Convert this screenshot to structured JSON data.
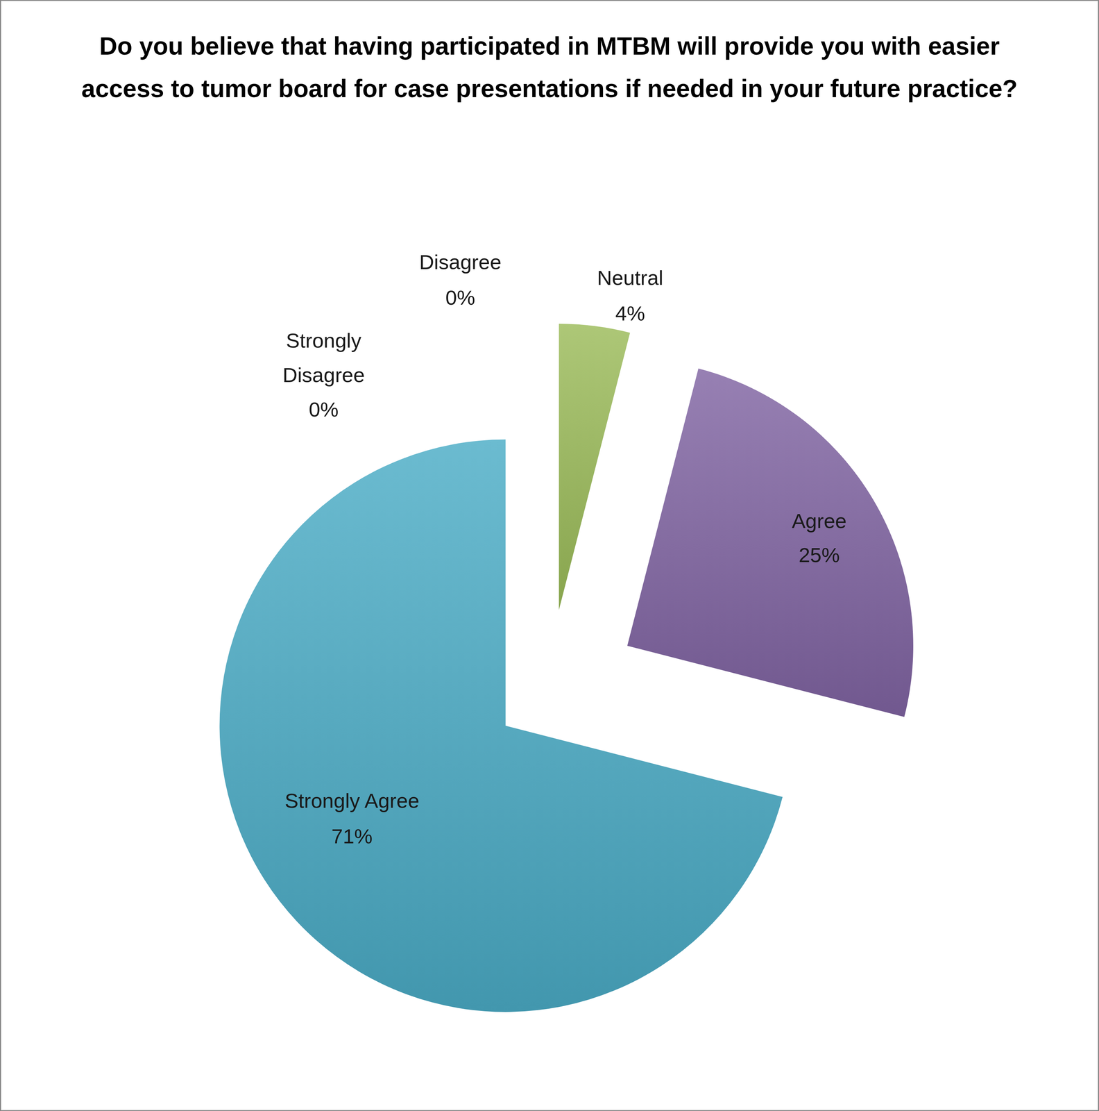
{
  "chart_data": {
    "type": "pie",
    "title": "Do you believe that having participated in MTBM will provide you with easier access to tumor board for case presentations if needed in your future practice?",
    "categories": [
      "Strongly Disagree",
      "Disagree",
      "Neutral",
      "Agree",
      "Strongly Agree"
    ],
    "values": [
      0,
      0,
      4,
      25,
      71
    ],
    "value_labels": [
      "0%",
      "0%",
      "4%",
      "25%",
      "71%"
    ],
    "colors": [
      "#4f81bd",
      "#c0504d",
      "#9bbb59",
      "#8064a2",
      "#4bacc6"
    ],
    "data_labels": true
  }
}
